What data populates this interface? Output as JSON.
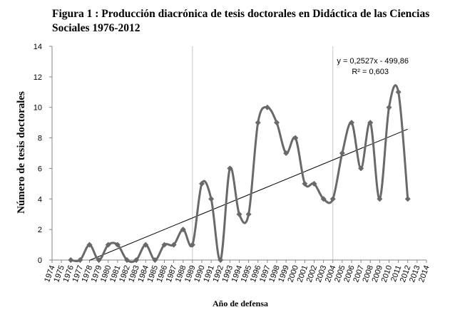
{
  "chart_data": {
    "type": "line",
    "title": "Figura 1 : Producción diacrónica de tesis doctorales en Didáctica de las Ciencias Sociales 1976-2012",
    "xlabel": "Año de defensa",
    "ylabel": "Número de tesis doctorales",
    "xlim": [
      1974,
      2014
    ],
    "ylim": [
      0,
      14
    ],
    "x_ticks": [
      "1974",
      "1975",
      "1976",
      "1977",
      "1978",
      "1979",
      "1980",
      "1981",
      "1982",
      "1983",
      "1984",
      "1985",
      "1986",
      "1987",
      "1988",
      "1989",
      "1990",
      "1991",
      "1992",
      "1993",
      "1994",
      "1995",
      "1996",
      "1997",
      "1998",
      "1999",
      "2000",
      "2001",
      "2002",
      "2003",
      "2004",
      "2005",
      "2006",
      "2007",
      "2008",
      "2009",
      "2010",
      "2011",
      "2012",
      "2013",
      "2014"
    ],
    "y_ticks": [
      "0",
      "2",
      "4",
      "6",
      "8",
      "10",
      "12",
      "14"
    ],
    "grid": "vertical",
    "series": [
      {
        "x": [
          1976,
          1977,
          1978,
          1979,
          1980,
          1981,
          1982,
          1983,
          1984,
          1985,
          1986,
          1987,
          1988,
          1989,
          1990,
          1991,
          1992,
          1993,
          1994,
          1995,
          1996,
          1997,
          1998,
          1999,
          2000,
          2001,
          2002,
          2003,
          2004,
          2005,
          2006,
          2007,
          2008,
          2009,
          2010,
          2011,
          2012
        ],
        "values": [
          0,
          0,
          1,
          0,
          1,
          1,
          0,
          0,
          1,
          0,
          1,
          1,
          2,
          1,
          5,
          4,
          0,
          6,
          3,
          3,
          9,
          10,
          9,
          7,
          8,
          5,
          5,
          4,
          4,
          7,
          9,
          6,
          9,
          4,
          10,
          11,
          4
        ],
        "color": "#696969",
        "marker": "diamond"
      }
    ],
    "trendline": {
      "slope": 0.2527,
      "intercept": -499.86,
      "x_range": [
        1978,
        2012
      ],
      "equation": "y = 0,2527x - 499,86",
      "r2": "R² = 0,603",
      "color": "#000000"
    }
  }
}
